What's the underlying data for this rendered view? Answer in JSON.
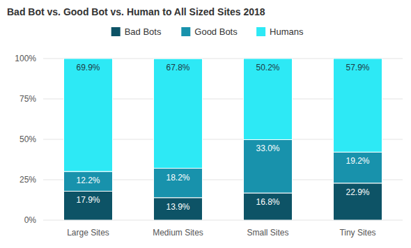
{
  "chart_data": {
    "type": "bar",
    "title": "Bad Bot vs. Good Bot vs. Human to All Sized Sites 2018",
    "categories": [
      "Large Sites",
      "Medium Sites",
      "Small Sites",
      "Tiny Sites"
    ],
    "series": [
      {
        "name": "Bad Bots",
        "color": "#0d5366",
        "values": [
          17.9,
          13.9,
          16.8,
          22.9
        ],
        "value_labels": [
          "17.9%",
          "13.9%",
          "16.8%",
          "22.9%"
        ]
      },
      {
        "name": "Good Bots",
        "color": "#1892ac",
        "values": [
          12.2,
          18.2,
          33.0,
          19.2
        ],
        "value_labels": [
          "12.2%",
          "18.2%",
          "33.0%",
          "19.2%"
        ]
      },
      {
        "name": "Humans",
        "color": "#2de9f5",
        "values": [
          69.9,
          67.8,
          50.2,
          57.9
        ],
        "value_labels": [
          "69.9%",
          "67.8%",
          "50.2%",
          "57.9%"
        ]
      }
    ],
    "ylim": [
      0,
      100
    ],
    "yticks": [
      {
        "value": 0,
        "label": "0%"
      },
      {
        "value": 25,
        "label": "25%"
      },
      {
        "value": 50,
        "label": "50%"
      },
      {
        "value": 75,
        "label": "75%"
      },
      {
        "value": 100,
        "label": "100%"
      }
    ],
    "stacked": true,
    "data_labels": true,
    "grid": true,
    "legend": "top"
  }
}
